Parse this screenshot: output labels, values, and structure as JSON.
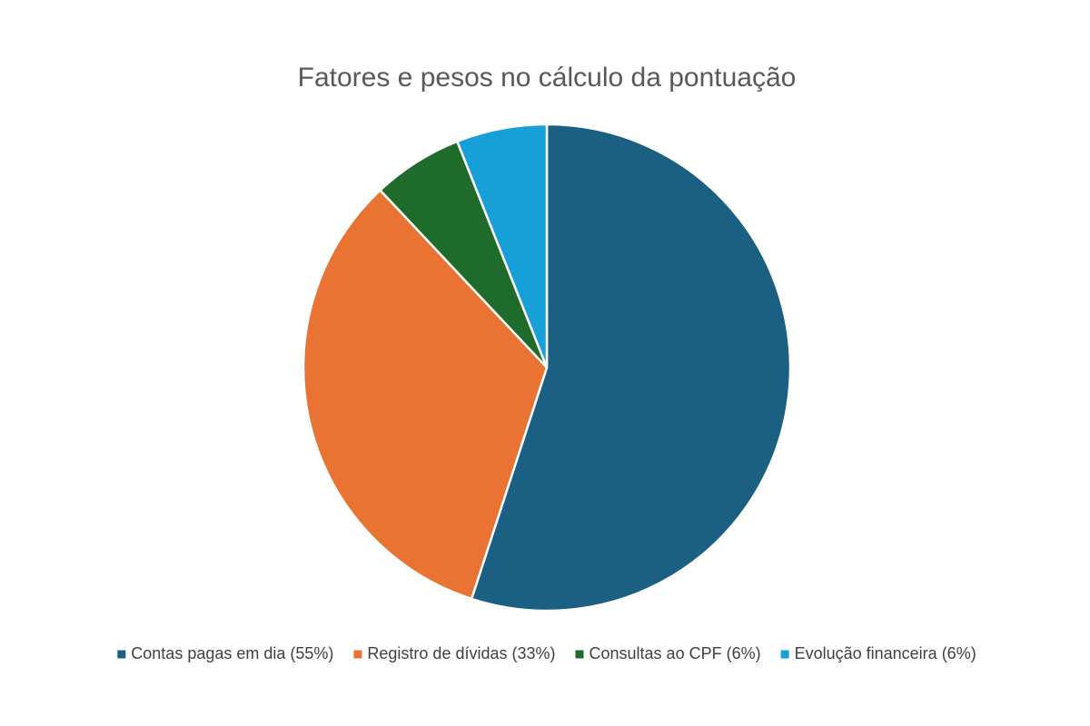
{
  "chart_data": {
    "type": "pie",
    "title": "Fatores e pesos no cálculo da pontuação",
    "categories": [
      "Contas pagas em dia (55%)",
      "Registro de dívidas (33%)",
      "Consultas ao CPF (6%)",
      "Evolução financeira (6%)"
    ],
    "values": [
      55,
      33,
      6,
      6
    ],
    "colors": [
      "#1b6082",
      "#e97332",
      "#1f6b2b",
      "#179fd7"
    ],
    "legend": "bottom"
  }
}
